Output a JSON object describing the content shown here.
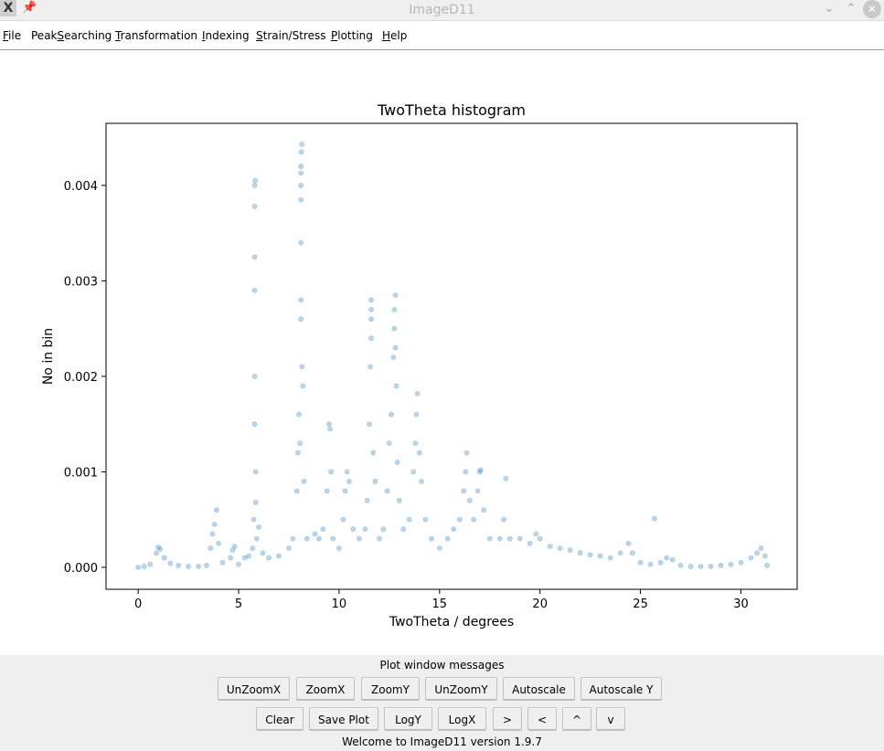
{
  "window": {
    "title": "ImageD11",
    "app_icon": "X",
    "pin_icon": "pin-icon",
    "minimize_icon": "chevron-down-icon",
    "maximize_icon": "chevron-up-icon",
    "close_icon": "close-icon"
  },
  "menu": [
    {
      "pre": "",
      "u": "F",
      "post": "ile"
    },
    {
      "pre": "Peak",
      "u": "S",
      "post": "earching"
    },
    {
      "pre": "",
      "u": "T",
      "post": "ransformation"
    },
    {
      "pre": "",
      "u": "I",
      "post": "ndexing"
    },
    {
      "pre": "",
      "u": "S",
      "post": "train/Stress"
    },
    {
      "pre": "",
      "u": "P",
      "post": "lotting"
    },
    {
      "pre": "",
      "u": "H",
      "post": "elp"
    }
  ],
  "chart_data": {
    "type": "scatter",
    "title": "TwoTheta histogram",
    "xlabel": "TwoTheta / degrees",
    "ylabel": "No in bin",
    "xlim": [
      -1.6,
      32.8
    ],
    "ylim": [
      -0.00023,
      0.00465
    ],
    "xticks": [
      0,
      5,
      10,
      15,
      20,
      25,
      30
    ],
    "xtick_labels": [
      "0",
      "5",
      "10",
      "15",
      "20",
      "25",
      "30"
    ],
    "yticks": [
      0,
      0.001,
      0.002,
      0.003,
      0.004
    ],
    "ytick_labels": [
      "0.000",
      "0.001",
      "0.002",
      "0.003",
      "0.004"
    ],
    "grid": false,
    "marker_color": "#1f77b4",
    "marker_alpha": 0.3,
    "points": [
      [
        0,
        0.0
      ],
      [
        0.3,
        1e-05
      ],
      [
        0.6,
        3e-05
      ],
      [
        0.9,
        0.00015
      ],
      [
        1.0,
        0.00021
      ],
      [
        1.1,
        0.00019
      ],
      [
        1.3,
        0.0001
      ],
      [
        1.6,
        4e-05
      ],
      [
        2.0,
        2e-05
      ],
      [
        2.5,
        1e-05
      ],
      [
        3.0,
        1e-05
      ],
      [
        3.4,
        2e-05
      ],
      [
        3.6,
        0.0002
      ],
      [
        3.7,
        0.00035
      ],
      [
        3.8,
        0.00045
      ],
      [
        3.9,
        0.0006
      ],
      [
        4.0,
        0.00025
      ],
      [
        4.2,
        5e-05
      ],
      [
        4.6,
        0.0001
      ],
      [
        4.7,
        0.00018
      ],
      [
        4.8,
        0.00022
      ],
      [
        5.0,
        3e-05
      ],
      [
        5.3,
        0.0001
      ],
      [
        5.5,
        0.00012
      ],
      [
        5.7,
        0.0002
      ],
      [
        5.75,
        0.0005
      ],
      [
        5.8,
        0.0015
      ],
      [
        5.8,
        0.002
      ],
      [
        5.8,
        0.0029
      ],
      [
        5.8,
        0.00325
      ],
      [
        5.8,
        0.00378
      ],
      [
        5.8,
        0.004
      ],
      [
        5.82,
        0.00405
      ],
      [
        5.85,
        0.001
      ],
      [
        5.85,
        0.00068
      ],
      [
        5.9,
        0.0003
      ],
      [
        6.0,
        0.00042
      ],
      [
        6.2,
        0.00015
      ],
      [
        6.5,
        0.0001
      ],
      [
        7.0,
        0.00012
      ],
      [
        7.5,
        0.0002
      ],
      [
        7.7,
        0.0003
      ],
      [
        7.9,
        0.0008
      ],
      [
        7.95,
        0.0012
      ],
      [
        8.0,
        0.0016
      ],
      [
        8.05,
        0.0013
      ],
      [
        8.1,
        0.0026
      ],
      [
        8.1,
        0.0028
      ],
      [
        8.1,
        0.0034
      ],
      [
        8.1,
        0.00385
      ],
      [
        8.1,
        0.004
      ],
      [
        8.1,
        0.00413
      ],
      [
        8.1,
        0.0042
      ],
      [
        8.12,
        0.00435
      ],
      [
        8.15,
        0.00443
      ],
      [
        8.15,
        0.0021
      ],
      [
        8.2,
        0.0019
      ],
      [
        8.25,
        0.0009
      ],
      [
        8.4,
        0.0003
      ],
      [
        8.8,
        0.00035
      ],
      [
        9.0,
        0.0003
      ],
      [
        9.2,
        0.0004
      ],
      [
        9.4,
        0.0008
      ],
      [
        9.5,
        0.0015
      ],
      [
        9.55,
        0.00145
      ],
      [
        9.6,
        0.001
      ],
      [
        9.7,
        0.0003
      ],
      [
        10.0,
        0.0002
      ],
      [
        10.2,
        0.0005
      ],
      [
        10.3,
        0.0008
      ],
      [
        10.4,
        0.001
      ],
      [
        10.5,
        0.0009
      ],
      [
        10.7,
        0.0004
      ],
      [
        11.0,
        0.0003
      ],
      [
        11.3,
        0.0004
      ],
      [
        11.4,
        0.0007
      ],
      [
        11.5,
        0.0015
      ],
      [
        11.55,
        0.0021
      ],
      [
        11.6,
        0.0024
      ],
      [
        11.6,
        0.0026
      ],
      [
        11.6,
        0.0027
      ],
      [
        11.6,
        0.0028
      ],
      [
        11.7,
        0.0012
      ],
      [
        11.8,
        0.0009
      ],
      [
        12.0,
        0.0003
      ],
      [
        12.2,
        0.0004
      ],
      [
        12.4,
        0.0008
      ],
      [
        12.5,
        0.0013
      ],
      [
        12.6,
        0.0016
      ],
      [
        12.7,
        0.0022
      ],
      [
        12.75,
        0.0025
      ],
      [
        12.75,
        0.0027
      ],
      [
        12.8,
        0.00285
      ],
      [
        12.8,
        0.0023
      ],
      [
        12.85,
        0.0019
      ],
      [
        12.9,
        0.0011
      ],
      [
        13.0,
        0.0007
      ],
      [
        13.2,
        0.0004
      ],
      [
        13.5,
        0.0005
      ],
      [
        13.7,
        0.001
      ],
      [
        13.8,
        0.0013
      ],
      [
        13.85,
        0.0016
      ],
      [
        13.9,
        0.00182
      ],
      [
        14.0,
        0.0012
      ],
      [
        14.1,
        0.0009
      ],
      [
        14.3,
        0.0005
      ],
      [
        14.6,
        0.0003
      ],
      [
        15.0,
        0.0002
      ],
      [
        15.4,
        0.0003
      ],
      [
        15.7,
        0.0004
      ],
      [
        16.0,
        0.0005
      ],
      [
        16.2,
        0.0008
      ],
      [
        16.3,
        0.001
      ],
      [
        16.35,
        0.0012
      ],
      [
        16.5,
        0.0007
      ],
      [
        16.7,
        0.0005
      ],
      [
        16.9,
        0.0008
      ],
      [
        17.0,
        0.001
      ],
      [
        17.05,
        0.00102
      ],
      [
        17.2,
        0.0006
      ],
      [
        17.5,
        0.0003
      ],
      [
        18.0,
        0.0003
      ],
      [
        18.2,
        0.0005
      ],
      [
        18.3,
        0.00093
      ],
      [
        18.5,
        0.0003
      ],
      [
        19.0,
        0.0003
      ],
      [
        19.5,
        0.00025
      ],
      [
        19.8,
        0.00035
      ],
      [
        20.0,
        0.0003
      ],
      [
        20.5,
        0.00022
      ],
      [
        21.0,
        0.0002
      ],
      [
        21.5,
        0.00018
      ],
      [
        22.0,
        0.00015
      ],
      [
        22.5,
        0.00013
      ],
      [
        23.0,
        0.00012
      ],
      [
        23.5,
        0.0001
      ],
      [
        24.0,
        0.00015
      ],
      [
        24.4,
        0.00025
      ],
      [
        24.6,
        0.00015
      ],
      [
        25.0,
        5e-05
      ],
      [
        25.5,
        3e-05
      ],
      [
        25.7,
        0.00051
      ],
      [
        26.0,
        5e-05
      ],
      [
        26.3,
        0.0001
      ],
      [
        26.6,
        8e-05
      ],
      [
        27.0,
        2e-05
      ],
      [
        27.5,
        1e-05
      ],
      [
        28.0,
        1e-05
      ],
      [
        28.5,
        1e-05
      ],
      [
        29.0,
        2e-05
      ],
      [
        29.5,
        3e-05
      ],
      [
        30.0,
        5e-05
      ],
      [
        30.5,
        0.0001
      ],
      [
        30.8,
        0.00015
      ],
      [
        31.0,
        0.0002
      ],
      [
        31.2,
        0.00012
      ],
      [
        31.3,
        2e-05
      ]
    ]
  },
  "controls": {
    "messages_label": "Plot window messages",
    "row1": [
      "UnZoomX",
      "ZoomX",
      "ZoomY",
      "UnZoomY",
      "Autoscale",
      "Autoscale Y"
    ],
    "row2": [
      "Clear",
      "Save Plot",
      "LogY",
      "LogX",
      ">",
      "<",
      "^",
      "v"
    ],
    "status": "Welcome to ImageD11 version 1.9.7"
  }
}
